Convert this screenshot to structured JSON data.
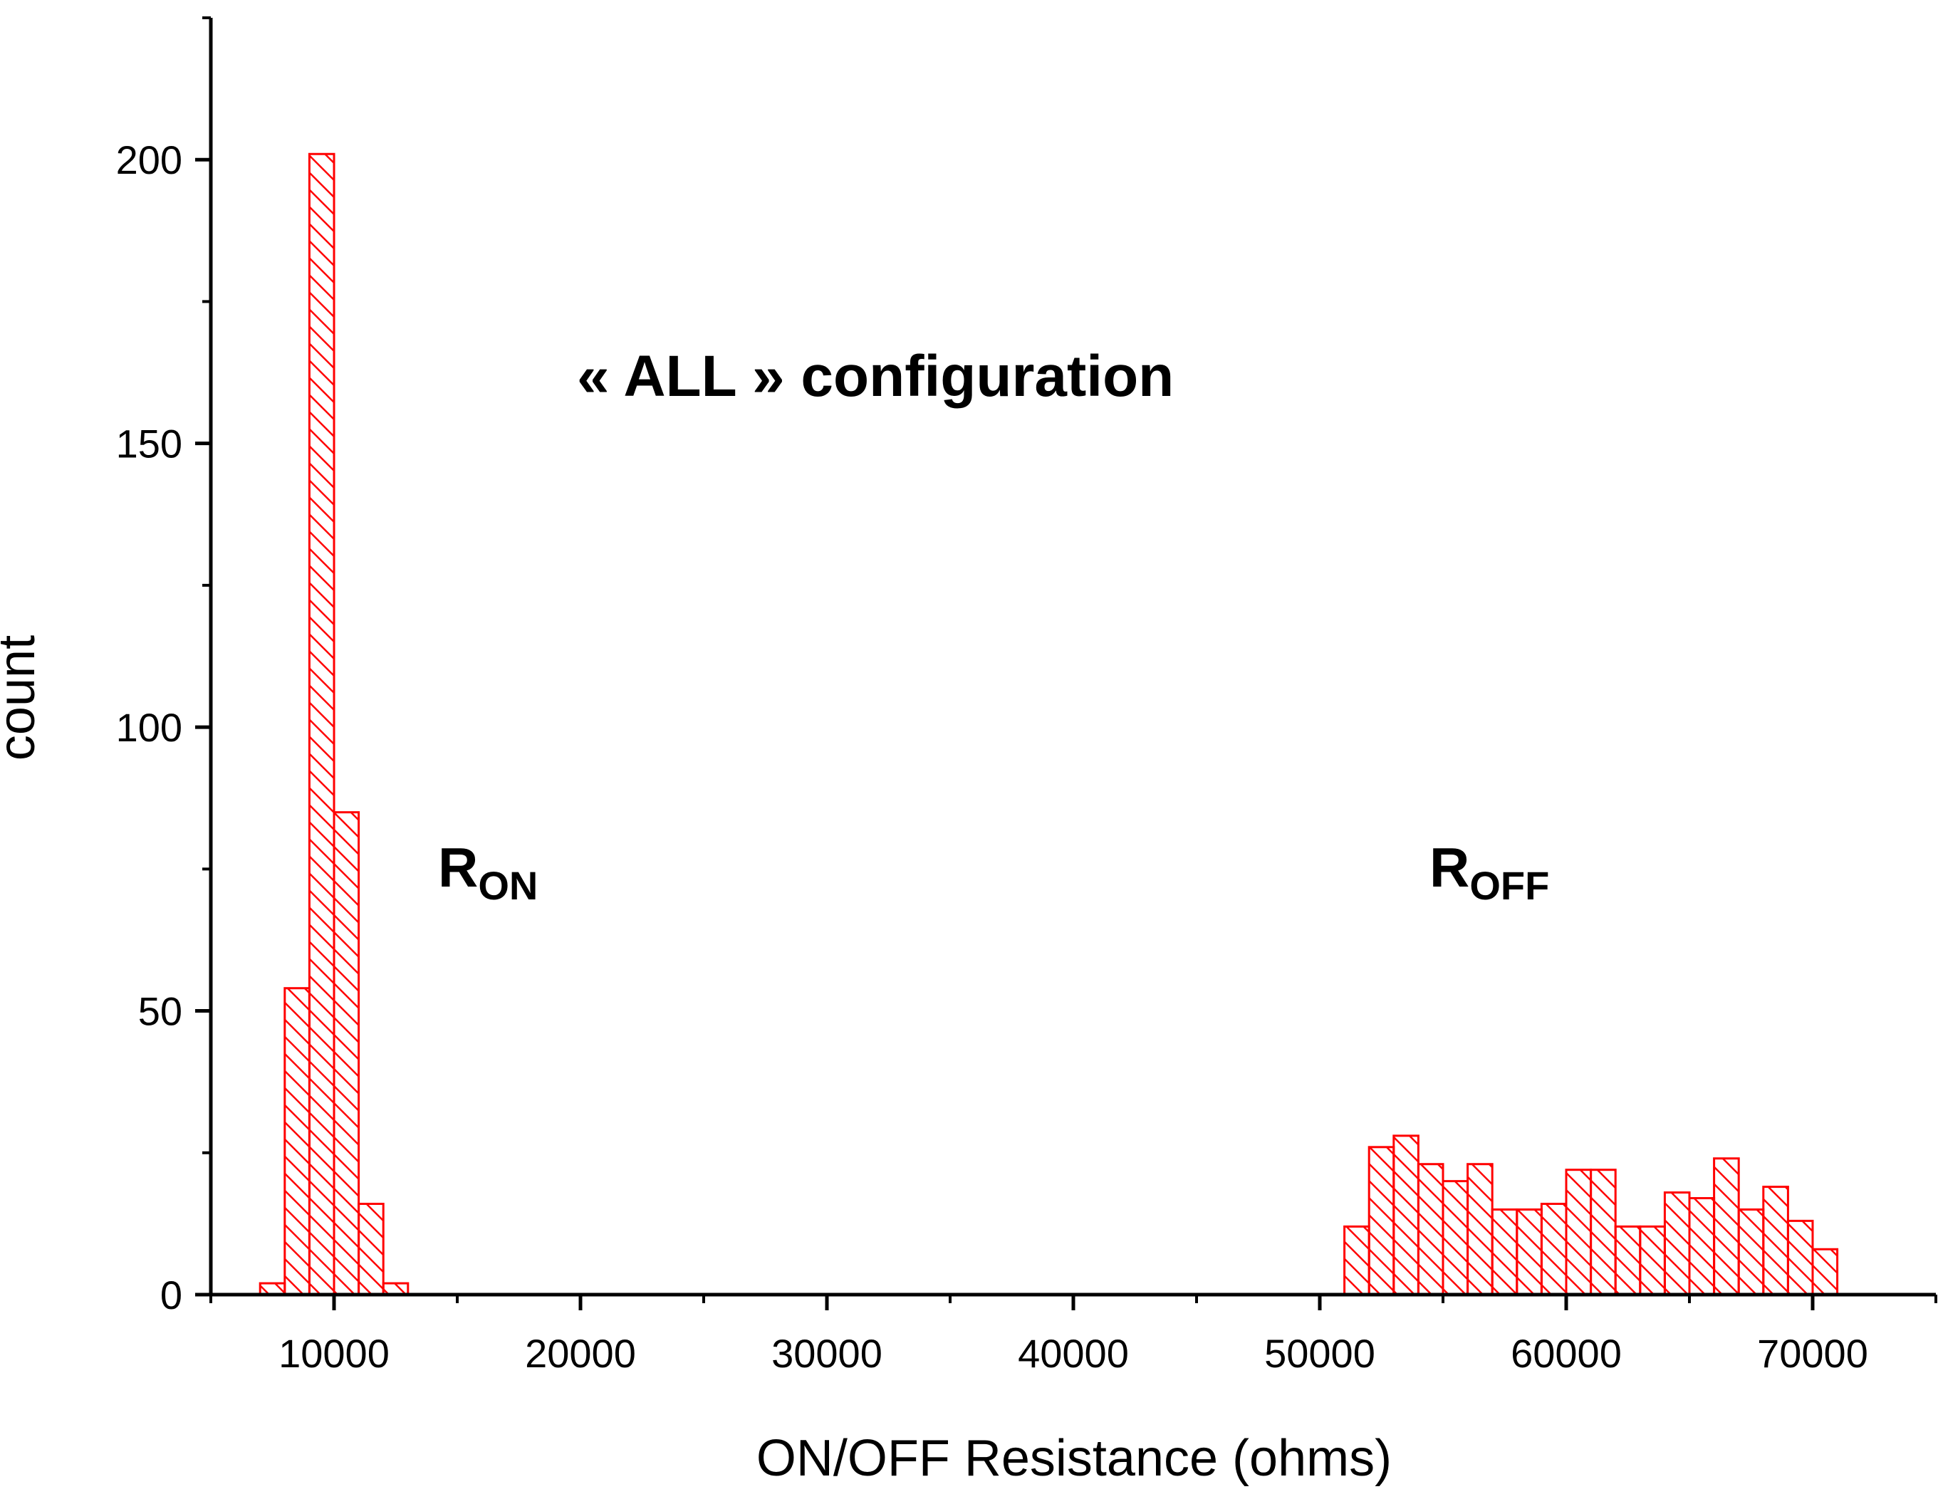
{
  "chart_data": {
    "type": "bar",
    "title": "",
    "xlabel": "ON/OFF Resistance (ohms)",
    "ylabel": "count",
    "xlim": [
      5000,
      75000
    ],
    "ylim": [
      0,
      225
    ],
    "x_ticks": [
      10000,
      20000,
      30000,
      40000,
      50000,
      60000,
      70000
    ],
    "x_tick_labels": [
      "10000",
      "20000",
      "30000",
      "40000",
      "50000",
      "60000",
      "70000"
    ],
    "y_ticks": [
      0,
      50,
      100,
      150,
      200
    ],
    "y_tick_labels": [
      "0",
      "50",
      "100",
      "150",
      "200"
    ],
    "bin_width": 1000,
    "grid": false,
    "bar_color": "#ff0000",
    "series": [
      {
        "bins": [
          {
            "x0": 7000,
            "x1": 8000,
            "count": 2
          },
          {
            "x0": 8000,
            "x1": 9000,
            "count": 54
          },
          {
            "x0": 9000,
            "x1": 10000,
            "count": 201
          },
          {
            "x0": 10000,
            "x1": 11000,
            "count": 85
          },
          {
            "x0": 11000,
            "x1": 12000,
            "count": 16
          },
          {
            "x0": 12000,
            "x1": 13000,
            "count": 2
          },
          {
            "x0": 51000,
            "x1": 52000,
            "count": 12
          },
          {
            "x0": 52000,
            "x1": 53000,
            "count": 26
          },
          {
            "x0": 53000,
            "x1": 54000,
            "count": 28
          },
          {
            "x0": 54000,
            "x1": 55000,
            "count": 23
          },
          {
            "x0": 55000,
            "x1": 56000,
            "count": 20
          },
          {
            "x0": 56000,
            "x1": 57000,
            "count": 23
          },
          {
            "x0": 57000,
            "x1": 58000,
            "count": 15
          },
          {
            "x0": 58000,
            "x1": 59000,
            "count": 15
          },
          {
            "x0": 59000,
            "x1": 60000,
            "count": 16
          },
          {
            "x0": 60000,
            "x1": 61000,
            "count": 22
          },
          {
            "x0": 61000,
            "x1": 62000,
            "count": 22
          },
          {
            "x0": 62000,
            "x1": 63000,
            "count": 12
          },
          {
            "x0": 63000,
            "x1": 64000,
            "count": 12
          },
          {
            "x0": 64000,
            "x1": 65000,
            "count": 18
          },
          {
            "x0": 65000,
            "x1": 66000,
            "count": 17
          },
          {
            "x0": 66000,
            "x1": 67000,
            "count": 24
          },
          {
            "x0": 67000,
            "x1": 68000,
            "count": 15
          },
          {
            "x0": 68000,
            "x1": 69000,
            "count": 19
          },
          {
            "x0": 69000,
            "x1": 70000,
            "count": 13
          },
          {
            "x0": 70000,
            "x1": 71000,
            "count": 8
          }
        ]
      }
    ],
    "annotations": [
      {
        "id": "config",
        "text": "« ALL » configuration"
      },
      {
        "id": "ron",
        "text": "R",
        "sub": "ON"
      },
      {
        "id": "roff",
        "text": "R",
        "sub": "OFF"
      }
    ]
  }
}
